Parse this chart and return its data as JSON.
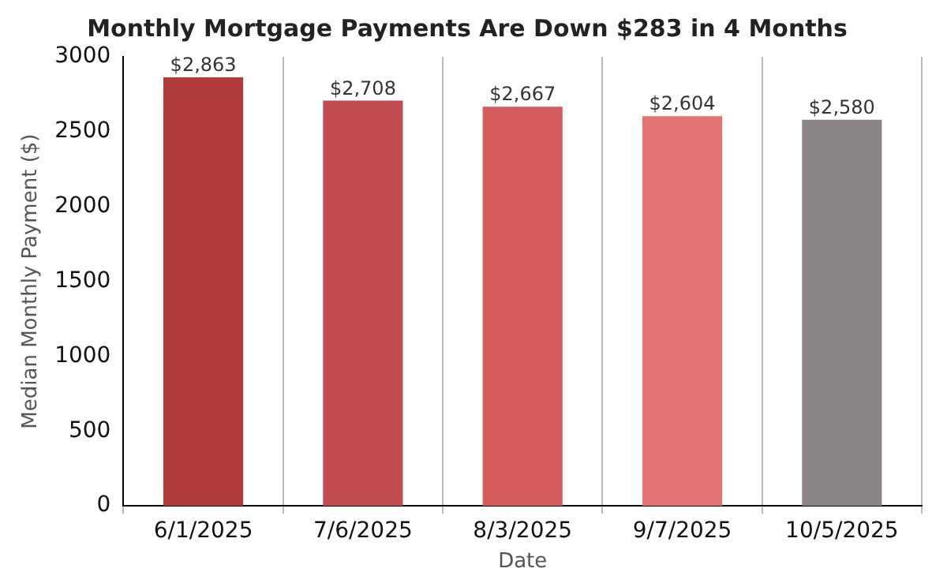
{
  "chart_data": {
    "type": "bar",
    "title": "Monthly Mortgage Payments Are Down $283 in 4 Months",
    "xlabel": "Date",
    "ylabel": "Median Monthly Payment ($)",
    "categories": [
      "6/1/2025",
      "7/6/2025",
      "8/3/2025",
      "9/7/2025",
      "10/5/2025"
    ],
    "values": [
      2863,
      2708,
      2667,
      2604,
      2580
    ],
    "colors": [
      "#b03a3a",
      "#c24b4f",
      "#d65c5c",
      "#e57373",
      "#8a8484"
    ],
    "value_labels": [
      "$2,863",
      "$2,708",
      "$2,667",
      "$2,604",
      "$2,580"
    ],
    "ylim": [
      0,
      3000
    ],
    "yticks": [
      0,
      500,
      1000,
      1500,
      2000,
      2500,
      3000
    ],
    "grid": "x"
  }
}
